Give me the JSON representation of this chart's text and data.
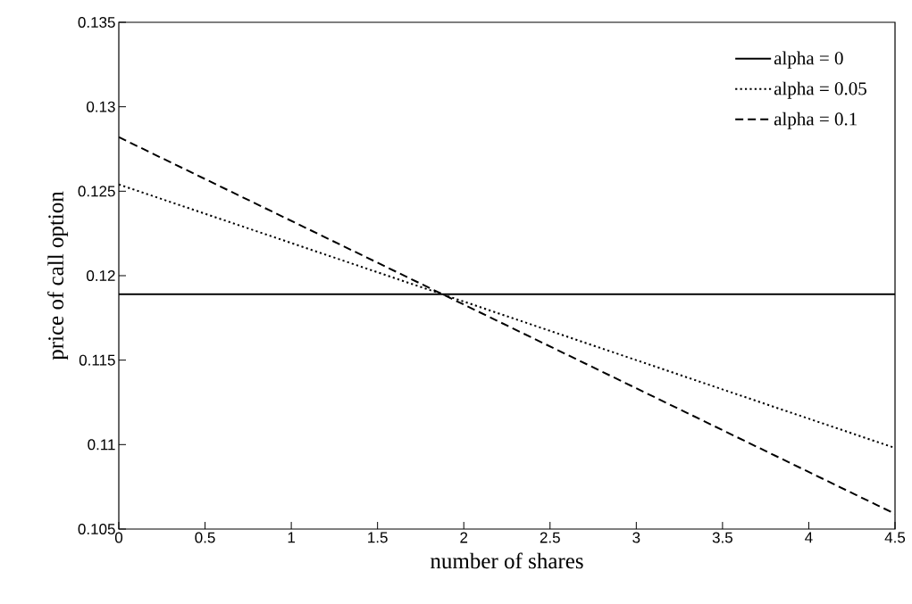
{
  "chart_data": {
    "type": "line",
    "xlabel": "number of shares",
    "ylabel": "price of call option",
    "x": [
      0,
      4.5
    ],
    "series": [
      {
        "name": "alpha = 0",
        "color": "#000000",
        "line_style": "solid",
        "values": [
          0.1189,
          0.1189
        ]
      },
      {
        "name": "alpha = 0.05",
        "color": "#000000",
        "line_style": "dotted",
        "values": [
          0.1254,
          0.1098
        ]
      },
      {
        "name": "alpha = 0.1",
        "color": "#000000",
        "line_style": "dashed",
        "values": [
          0.1282,
          0.1059
        ]
      }
    ],
    "xlim": [
      0,
      4.5
    ],
    "ylim": [
      0.105,
      0.135
    ],
    "xticks": [
      0,
      0.5,
      1,
      1.5,
      2,
      2.5,
      3,
      3.5,
      4,
      4.5
    ],
    "yticks": [
      0.105,
      0.11,
      0.115,
      0.12,
      0.125,
      0.13,
      0.135
    ],
    "grid": false,
    "legend": "top right",
    "marker": "none"
  }
}
